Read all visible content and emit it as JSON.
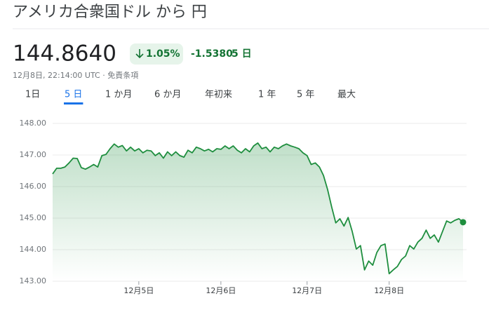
{
  "header": {
    "title": "アメリカ合衆国ドル から 円",
    "price": "144.8640",
    "change_percent": "1.05%",
    "change": "-1.5380",
    "period": "5 日",
    "timestamp": "12月8日, 22:14:00 UTC",
    "disclaimer": "免責条項"
  },
  "tabs": [
    "1日",
    "5 日",
    "1 か月",
    "6 か月",
    "年初来",
    "1 年",
    "5 年",
    "最大"
  ],
  "selected_tab": 1,
  "chart_data": {
    "type": "line",
    "color": "#1e8e3e",
    "grid": true,
    "ylim": [
      143,
      148
    ],
    "yticks": [
      {
        "value": 143,
        "label": "143.00"
      },
      {
        "value": 144,
        "label": "144.00"
      },
      {
        "value": 145,
        "label": "145.00"
      },
      {
        "value": 146,
        "label": "146.00"
      },
      {
        "value": 147,
        "label": "147.00"
      },
      {
        "value": 148,
        "label": "148.00"
      }
    ],
    "categories": [
      null,
      null,
      null,
      null,
      null,
      null,
      null,
      null,
      null,
      null,
      null,
      null,
      null,
      null,
      null,
      null,
      null,
      null,
      null,
      null,
      null,
      "12月5日",
      null,
      null,
      null,
      null,
      null,
      null,
      null,
      null,
      null,
      null,
      null,
      null,
      null,
      null,
      null,
      null,
      null,
      null,
      null,
      "12月6日",
      null,
      null,
      null,
      null,
      null,
      null,
      null,
      null,
      null,
      null,
      null,
      null,
      null,
      null,
      null,
      null,
      null,
      null,
      null,
      null,
      "12月7日",
      null,
      null,
      null,
      null,
      null,
      null,
      null,
      null,
      null,
      null,
      null,
      null,
      null,
      null,
      null,
      null,
      null,
      null,
      null,
      "12月8日",
      null,
      null,
      null,
      null,
      null,
      null,
      null,
      null,
      null,
      null,
      null,
      null,
      null,
      null,
      null,
      null,
      null,
      null
    ],
    "values": [
      146.4,
      146.58,
      146.58,
      146.62,
      146.75,
      146.9,
      146.89,
      146.6,
      146.55,
      146.62,
      146.7,
      146.62,
      146.98,
      147.02,
      147.2,
      147.35,
      147.25,
      147.3,
      147.13,
      147.25,
      147.13,
      147.2,
      147.07,
      147.15,
      147.13,
      146.98,
      147.07,
      146.9,
      147.1,
      146.98,
      147.1,
      146.98,
      146.93,
      147.15,
      147.07,
      147.25,
      147.2,
      147.13,
      147.18,
      147.1,
      147.2,
      147.18,
      147.29,
      147.2,
      147.29,
      147.15,
      147.07,
      147.2,
      147.1,
      147.29,
      147.38,
      147.2,
      147.25,
      147.1,
      147.25,
      147.2,
      147.29,
      147.35,
      147.29,
      147.25,
      147.2,
      147.07,
      146.98,
      146.7,
      146.75,
      146.62,
      146.35,
      145.91,
      145.35,
      144.85,
      144.98,
      144.75,
      145.02,
      144.58,
      144.02,
      144.13,
      143.36,
      143.64,
      143.51,
      143.91,
      144.13,
      144.18,
      143.24,
      143.36,
      143.47,
      143.69,
      143.8,
      144.13,
      144.02,
      144.24,
      144.36,
      144.62,
      144.36,
      144.47,
      144.24,
      144.58,
      144.91,
      144.85,
      144.93,
      144.98,
      144.87
    ]
  }
}
